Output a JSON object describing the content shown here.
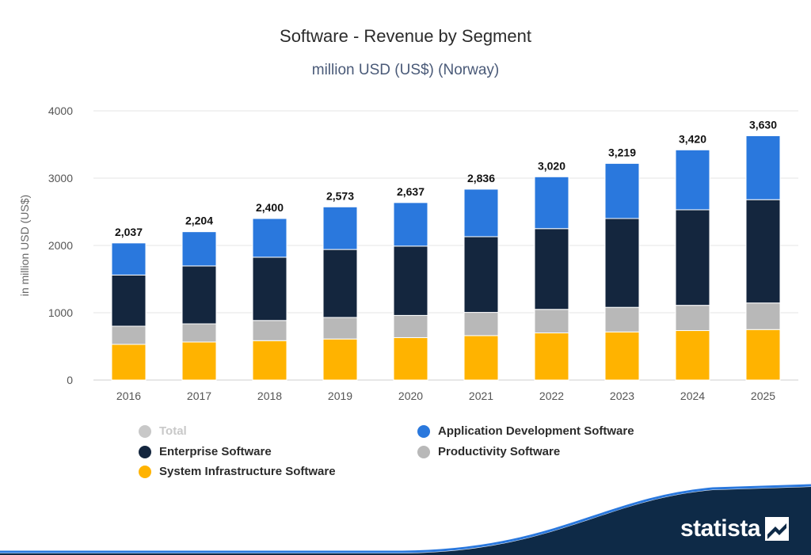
{
  "chart_data": {
    "type": "bar",
    "stacked": true,
    "title": "Software - Revenue by Segment",
    "subtitle": "million USD (US$) (Norway)",
    "ylabel": "in million USD (US$)",
    "xlabel": "",
    "ylim": [
      0,
      4000
    ],
    "yticks": [
      "0",
      "1000",
      "2000",
      "3000",
      "4000"
    ],
    "categories": [
      "2016",
      "2017",
      "2018",
      "2019",
      "2020",
      "2021",
      "2022",
      "2023",
      "2024",
      "2025"
    ],
    "series": [
      {
        "name": "System Infrastructure Software",
        "color": "#ffb300",
        "values": [
          530,
          565,
          585,
          610,
          630,
          660,
          700,
          715,
          735,
          750
        ]
      },
      {
        "name": "Productivity Software",
        "color": "#b8b8b8",
        "values": [
          270,
          270,
          300,
          320,
          330,
          345,
          350,
          365,
          375,
          395
        ]
      },
      {
        "name": "Enterprise Software",
        "color": "#14263e",
        "values": [
          760,
          860,
          940,
          1010,
          1030,
          1125,
          1200,
          1320,
          1420,
          1535
        ]
      },
      {
        "name": "Application Development Software",
        "color": "#2a78dd",
        "values": [
          477,
          509,
          575,
          633,
          647,
          706,
          770,
          819,
          890,
          950
        ]
      }
    ],
    "totals": [
      2037,
      2204,
      2400,
      2573,
      2637,
      2836,
      3020,
      3219,
      3420,
      3630
    ],
    "total_labels": [
      "2,037",
      "2,204",
      "2,400",
      "2,573",
      "2,637",
      "2,836",
      "3,020",
      "3,219",
      "3,420",
      "3,630"
    ],
    "legend": [
      {
        "label": "Total",
        "color": "#c8c8c8",
        "muted": true
      },
      {
        "label": "Application Development Software",
        "color": "#2a78dd"
      },
      {
        "label": "Enterprise Software",
        "color": "#14263e"
      },
      {
        "label": "Productivity Software",
        "color": "#b8b8b8"
      },
      {
        "label": "System Infrastructure Software",
        "color": "#ffb300"
      }
    ],
    "legend_position": "bottom",
    "grid": true
  },
  "brand": {
    "name": "statista",
    "icon": "statista-logo-icon",
    "color": "#0e2a47",
    "accent": "#2a78dd"
  }
}
